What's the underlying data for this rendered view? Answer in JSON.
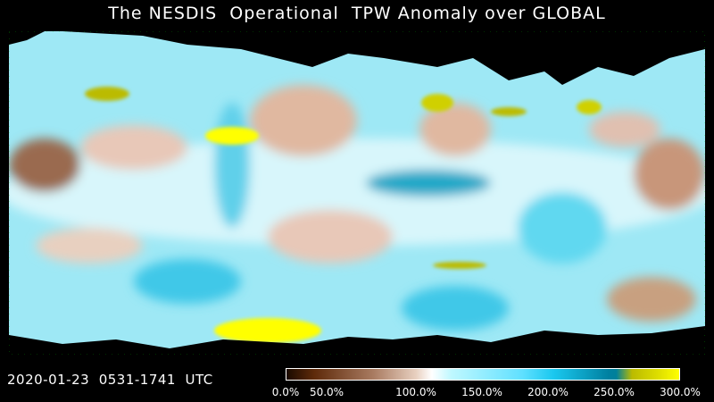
{
  "title": "The NESDIS  Operational  TPW Anomaly over GLOBAL",
  "timestamp": "2020-01-23  0531-1741  UTC",
  "colorbar": {
    "ticks": [
      "0.0%",
      "50.0%",
      "100.0%",
      "150.0%",
      "200.0%",
      "250.0%",
      "300.0%"
    ],
    "colors": {
      "low": "#3a1500",
      "mid_low": "#e8d0c0",
      "normal": "#ffffff",
      "high": "#1ac8ef",
      "very_high": "#bbbb00",
      "max": "#ffff00"
    }
  },
  "map": {
    "background_color": "#7fe0f0",
    "land_mask_color": "#000000",
    "coastline_color": "#00ff00"
  }
}
